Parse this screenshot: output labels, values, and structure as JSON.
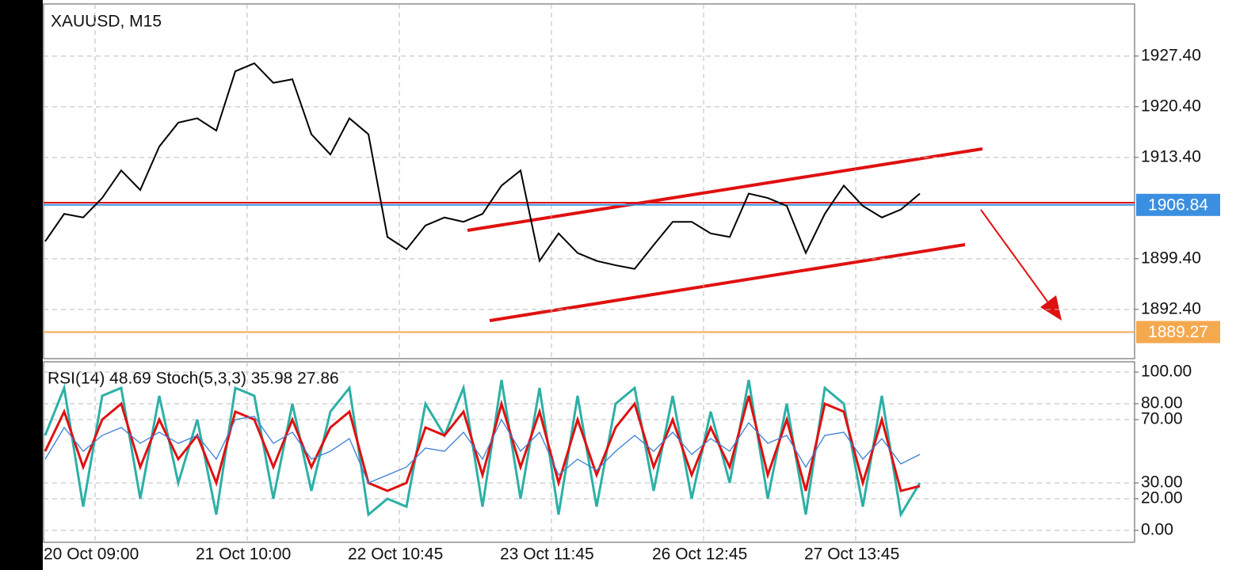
{
  "chart_data": [
    {
      "type": "line",
      "title": "XAUUSD, M15",
      "ylim": [
        1885.6,
        1934.6
      ],
      "yticks": [
        {
          "value": 1892.4,
          "label": "1892.40"
        },
        {
          "value": 1899.4,
          "label": "1899.40"
        },
        {
          "value": 1913.4,
          "label": "1913.40"
        },
        {
          "value": 1920.4,
          "label": "1920.40"
        },
        {
          "value": 1927.4,
          "label": "1927.40"
        }
      ],
      "grid": true,
      "price_lines": [
        {
          "value": 1906.84,
          "color": "#3b8fe0"
        },
        {
          "value": 1889.27,
          "color": "#f5a94e"
        }
      ],
      "series": [
        {
          "color": "#000000",
          "values": [
            1901.8,
            1905.6,
            1905.1,
            1907.8,
            1911.6,
            1908.9,
            1914.9,
            1918.2,
            1918.8,
            1917.1,
            1925.3,
            1926.4,
            1923.7,
            1924.2,
            1916.6,
            1913.8,
            1918.8,
            1916.6,
            1902.4,
            1900.7,
            1904.0,
            1905.1,
            1904.5,
            1905.6,
            1909.5,
            1911.6,
            1899.1,
            1902.9,
            1900.2,
            1899.1,
            1898.5,
            1898.0,
            1901.3,
            1904.5,
            1904.5,
            1902.9,
            1902.4,
            1908.4,
            1907.8,
            1906.7,
            1900.2,
            1905.6,
            1909.5,
            1906.7,
            1905.1,
            1906.2,
            1908.4,
            null,
            null,
            null,
            null,
            null,
            null,
            null,
            null,
            null,
            null,
            null
          ]
        }
      ]
    },
    {
      "type": "line",
      "title": "RSI(14) 48.69 Stoch(5,3,3) 35.98 27.86",
      "categories": [
        "20 Oct 09:00",
        null,
        null,
        null,
        null,
        null,
        null,
        null,
        "21 Oct 10:00",
        null,
        null,
        null,
        null,
        null,
        null,
        null,
        "22 Oct 10:45",
        null,
        null,
        null,
        null,
        null,
        null,
        null,
        "23 Oct 11:45",
        null,
        null,
        null,
        null,
        null,
        null,
        null,
        "26 Oct 12:45",
        null,
        null,
        null,
        null,
        null,
        null,
        null,
        "27 Oct 13:45",
        null,
        null,
        null,
        null,
        null,
        null,
        null,
        null,
        null,
        null,
        null,
        null,
        null,
        null,
        null,
        null,
        null
      ],
      "ylim": [
        -7.5,
        106.5
      ],
      "yticks": [
        {
          "value": 0,
          "label": "0.00"
        },
        {
          "value": 20,
          "label": "20.00"
        },
        {
          "value": 30,
          "label": "30.00"
        },
        {
          "value": 70,
          "label": "70.00"
        },
        {
          "value": 80,
          "label": "80.00"
        },
        {
          "value": 100,
          "label": "100.00"
        }
      ],
      "grid": true,
      "series": [
        {
          "color": "#2cb0a6",
          "values": [
            60,
            90,
            15,
            85,
            90,
            20,
            85,
            30,
            70,
            10,
            90,
            85,
            20,
            80,
            25,
            75,
            90,
            10,
            20,
            15,
            80,
            60,
            90,
            15,
            95,
            20,
            90,
            10,
            85,
            15,
            80,
            90,
            25,
            85,
            20,
            75,
            30,
            95,
            20,
            80,
            10,
            90,
            80,
            15,
            85,
            10,
            30,
            null,
            null,
            null,
            null,
            null,
            null,
            null,
            null,
            null,
            null,
            null
          ]
        },
        {
          "color": "#e01010",
          "values": [
            50,
            75,
            40,
            70,
            80,
            40,
            70,
            45,
            60,
            30,
            75,
            70,
            40,
            70,
            40,
            65,
            75,
            30,
            25,
            30,
            65,
            60,
            75,
            35,
            80,
            40,
            75,
            30,
            70,
            35,
            65,
            80,
            40,
            70,
            35,
            65,
            40,
            85,
            35,
            70,
            25,
            80,
            75,
            30,
            70,
            25,
            28,
            null,
            null,
            null,
            null,
            null,
            null,
            null,
            null,
            null,
            null,
            null
          ]
        },
        {
          "color": "#3a7fd5",
          "values": [
            45,
            65,
            50,
            60,
            65,
            55,
            62,
            55,
            60,
            45,
            70,
            72,
            55,
            62,
            45,
            50,
            58,
            30,
            35,
            40,
            52,
            50,
            62,
            45,
            70,
            50,
            62,
            35,
            45,
            38,
            50,
            60,
            50,
            62,
            48,
            58,
            50,
            68,
            55,
            60,
            40,
            60,
            62,
            45,
            58,
            42,
            48,
            null,
            null,
            null,
            null,
            null,
            null,
            null,
            null,
            null,
            null,
            null
          ]
        }
      ]
    }
  ]
}
